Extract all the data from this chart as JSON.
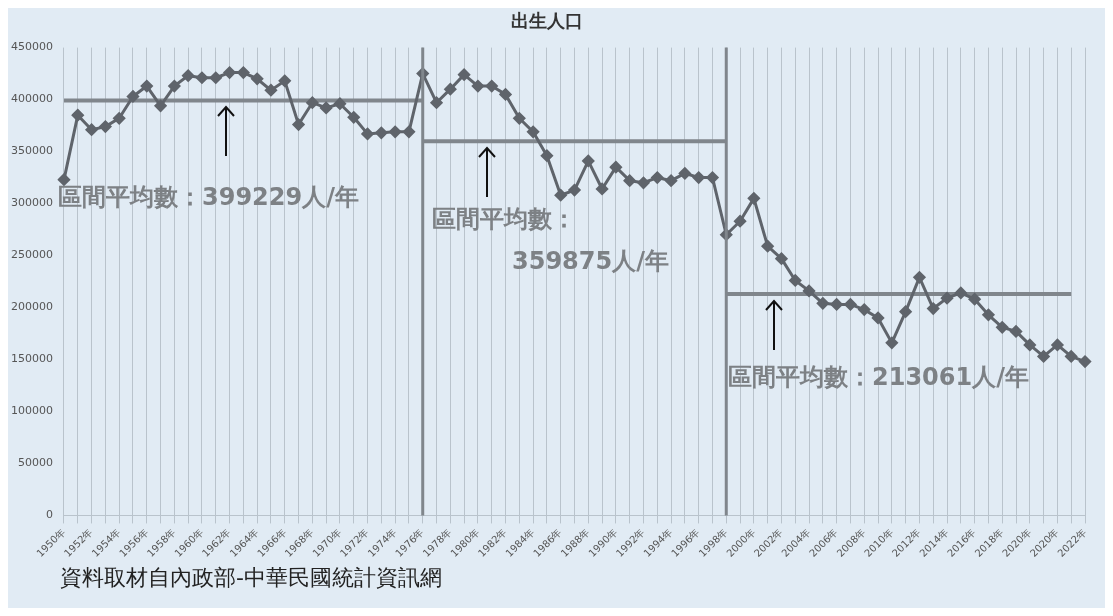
{
  "chart_data": {
    "type": "line",
    "title": "出生人口",
    "categories": [
      "1950年",
      null,
      "1952年",
      null,
      "1954年",
      null,
      "1956年",
      null,
      "1958年",
      null,
      "1960年",
      null,
      "1962年",
      null,
      "1964年",
      null,
      "1966年",
      null,
      "1968年",
      null,
      "1970年",
      null,
      "1972年",
      null,
      "1974年",
      null,
      "1976年",
      null,
      "1978年",
      null,
      "1980年",
      null,
      "1982年",
      null,
      "1984年",
      null,
      "1986年",
      null,
      "1988年",
      null,
      "1990年",
      null,
      "1992年",
      null,
      "1994年",
      null,
      "1996年",
      null,
      "1998年",
      null,
      "2000年",
      null,
      "2002年",
      null,
      "2004年",
      null,
      "2006年",
      null,
      "2008年",
      null,
      "2010年",
      null,
      "2012年",
      null,
      "2014年",
      null,
      "2016年",
      null,
      "2018年",
      null,
      "2020年",
      null,
      "2020年",
      null,
      "2022年"
    ],
    "series": [
      {
        "color": "#5f646b",
        "marker": "diamond",
        "values": [
          323000,
          385000,
          371000,
          374000,
          382000,
          403000,
          413000,
          394000,
          413000,
          423000,
          421000,
          421000,
          426000,
          426000,
          420000,
          409000,
          418000,
          376000,
          397000,
          392000,
          396000,
          383000,
          367000,
          368000,
          369000,
          369000,
          425000,
          397000,
          410000,
          424000,
          413000,
          413000,
          405000,
          382000,
          369000,
          346000,
          308000,
          313000,
          341000,
          314000,
          335000,
          322000,
          320000,
          325000,
          322000,
          329000,
          325000,
          325000,
          270000,
          283000,
          305000,
          259000,
          247000,
          226000,
          216000,
          204000,
          203000,
          203000,
          198000,
          190000,
          166000,
          196000,
          229000,
          199000,
          209000,
          214000,
          208000,
          193000,
          181000,
          177000,
          164000,
          153000,
          164000,
          153000,
          148000
        ]
      },
      {
        "color": "#80868c",
        "marker": "none",
        "values": [
          399229,
          399229,
          399229,
          399229,
          399229,
          399229,
          399229,
          399229,
          399229,
          399229,
          399229,
          399229,
          399229,
          399229,
          399229,
          399229,
          399229,
          399229,
          399229,
          399229,
          399229,
          399229,
          399229,
          399229,
          399229,
          399229,
          399229,
          null,
          null,
          null,
          null,
          null,
          null,
          null,
          null,
          null,
          null,
          null,
          null,
          null,
          null,
          null,
          null,
          null,
          null,
          null,
          null,
          null,
          null,
          null,
          null,
          null,
          null,
          null,
          null,
          null,
          null,
          null,
          null,
          null,
          null,
          null,
          null,
          null,
          null,
          null,
          null,
          null,
          null,
          null,
          null,
          null,
          null,
          null,
          null
        ]
      },
      {
        "color": "#80868c",
        "marker": "none",
        "values": [
          null,
          null,
          null,
          null,
          null,
          null,
          null,
          null,
          null,
          null,
          null,
          null,
          null,
          null,
          null,
          null,
          null,
          null,
          null,
          null,
          null,
          null,
          null,
          null,
          null,
          null,
          359875,
          359875,
          359875,
          359875,
          359875,
          359875,
          359875,
          359875,
          359875,
          359875,
          359875,
          359875,
          359875,
          359875,
          359875,
          359875,
          359875,
          359875,
          359875,
          359875,
          359875,
          359875,
          359875,
          null,
          null,
          null,
          null,
          null,
          null,
          null,
          null,
          null,
          null,
          null,
          null,
          null,
          null,
          null,
          null,
          null,
          null,
          null,
          null,
          null,
          null,
          null,
          null,
          null,
          null
        ]
      },
      {
        "color": "#80868c",
        "marker": "none",
        "values": [
          null,
          null,
          null,
          null,
          null,
          null,
          null,
          null,
          null,
          null,
          null,
          null,
          null,
          null,
          null,
          null,
          null,
          null,
          null,
          null,
          null,
          null,
          null,
          null,
          null,
          null,
          null,
          null,
          null,
          null,
          null,
          null,
          null,
          null,
          null,
          null,
          null,
          null,
          null,
          null,
          null,
          null,
          null,
          null,
          null,
          null,
          null,
          null,
          213061,
          213061,
          213061,
          213061,
          213061,
          213061,
          213061,
          213061,
          213061,
          213061,
          213061,
          213061,
          213061,
          213061,
          213061,
          213061,
          213061,
          213061,
          213061,
          213061,
          213061,
          213061,
          213061,
          213061,
          213061,
          213061,
          null
        ]
      }
    ],
    "ylim": [
      0,
      450000
    ],
    "yticks": [
      0,
      50000,
      100000,
      150000,
      200000,
      250000,
      300000,
      350000,
      400000,
      450000
    ],
    "grid": "x",
    "legend": false,
    "ref_lines": [
      {
        "axis": "x",
        "value": "1976年",
        "color": "#80868c"
      },
      {
        "axis": "x",
        "value": "1998年",
        "color": "#80868c"
      }
    ],
    "annotations": [
      "區間平均數：399229人/年",
      "區間平均數：\n359875人/年",
      "區間平均數：213061人/年",
      "資料取材自內政部-中華民國統計資訊網"
    ]
  }
}
